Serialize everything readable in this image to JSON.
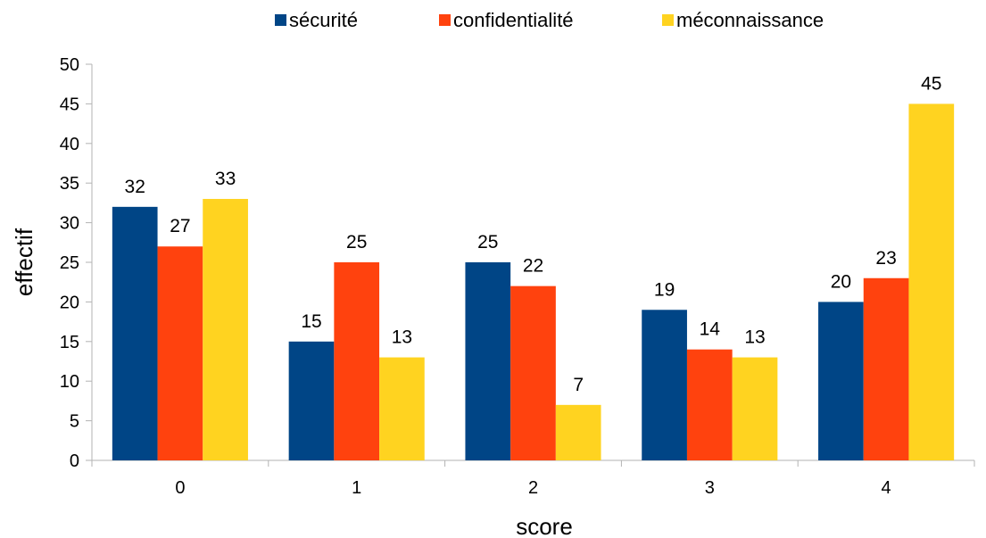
{
  "chart_data": {
    "type": "bar",
    "categories": [
      "0",
      "1",
      "2",
      "3",
      "4"
    ],
    "series": [
      {
        "name": "sécurité",
        "values": [
          32,
          15,
          25,
          19,
          20
        ],
        "color": "#004586"
      },
      {
        "name": "confidentialité",
        "values": [
          27,
          25,
          22,
          14,
          23
        ],
        "color": "#ff420e"
      },
      {
        "name": "méconnaissance",
        "values": [
          33,
          13,
          7,
          13,
          45
        ],
        "color": "#ffd320"
      }
    ],
    "xlabel": "score",
    "ylabel": "effectif",
    "ylim": [
      0,
      50
    ],
    "yticks": [
      0,
      5,
      10,
      15,
      20,
      25,
      30,
      35,
      40,
      45,
      50
    ],
    "grid": false,
    "legend_position": "top"
  }
}
